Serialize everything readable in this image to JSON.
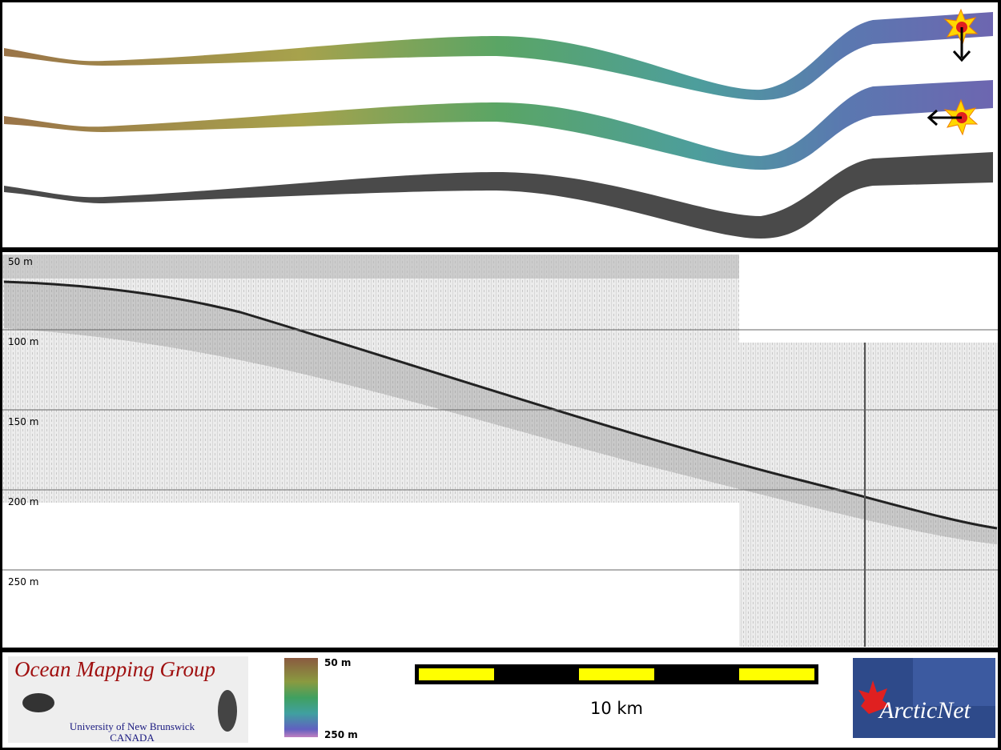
{
  "profile": {
    "depth_labels": [
      "50 m",
      "100 m",
      "150 m",
      "200 m",
      "250 m"
    ]
  },
  "legend": {
    "colorbar_top": "50 m",
    "colorbar_bottom": "250 m",
    "scale_label": "10 km"
  },
  "logos": {
    "omg_title": "Ocean Mapping Group",
    "omg_university": "University of New Brunswick",
    "omg_country": "CANADA",
    "arcticnet": "ArcticNet"
  }
}
